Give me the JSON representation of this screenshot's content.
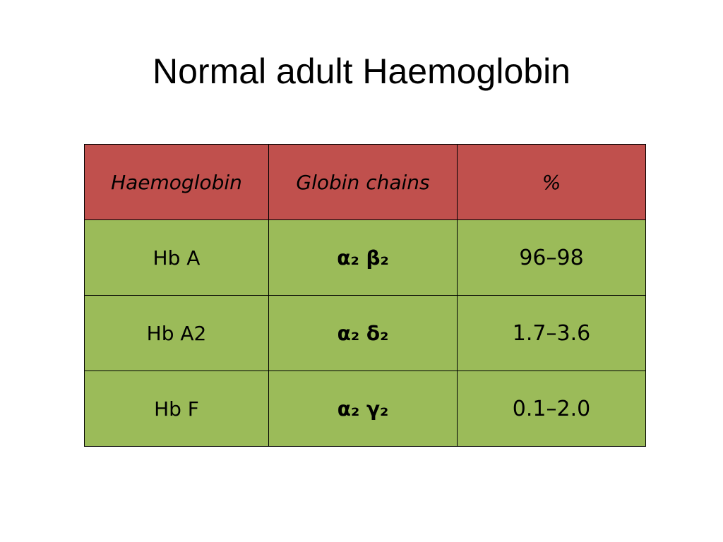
{
  "title": "Normal adult Haemoglobin",
  "table": {
    "header": [
      "Haemoglobin",
      "Globin chains",
      "%"
    ],
    "rows": [
      [
        "Hb A",
        "α₂ β₂",
        "96–98"
      ],
      [
        "Hb A2",
        "α₂ δ₂",
        "1.7–3.6"
      ],
      [
        "Hb F",
        "α₂ γ₂",
        "0.1–2.0"
      ]
    ]
  }
}
